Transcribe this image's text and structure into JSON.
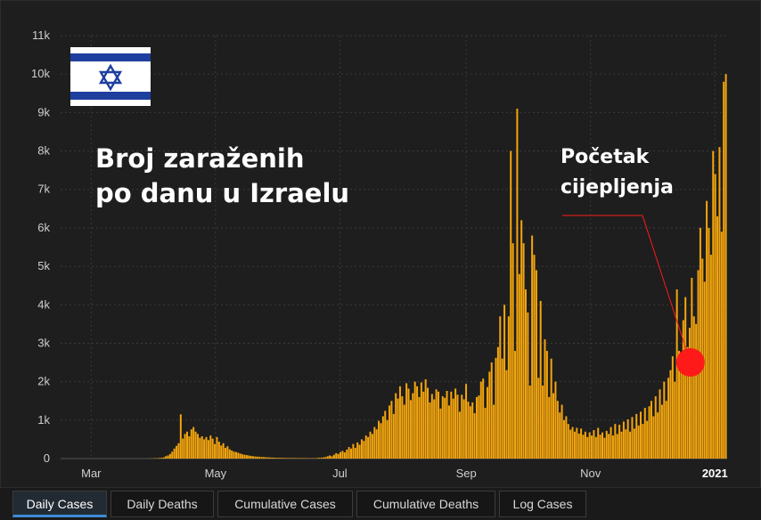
{
  "chart_data": {
    "type": "bar",
    "title": "",
    "xlabel": "",
    "ylabel": "",
    "ylim": [
      0,
      11000
    ],
    "yticks": [
      0,
      1000,
      2000,
      3000,
      4000,
      5000,
      6000,
      7000,
      8000,
      9000,
      10000,
      11000
    ],
    "ytick_labels": [
      "0",
      "1k",
      "2k",
      "3k",
      "4k",
      "5k",
      "6k",
      "7k",
      "8k",
      "9k",
      "10k",
      "11k"
    ],
    "xticks": [
      {
        "label": "Mar",
        "date": "2020-03-01",
        "bold": false
      },
      {
        "label": "May",
        "date": "2020-05-01",
        "bold": false
      },
      {
        "label": "Jul",
        "date": "2020-07-01",
        "bold": false
      },
      {
        "label": "Sep",
        "date": "2020-09-01",
        "bold": false
      },
      {
        "label": "Nov",
        "date": "2020-11-01",
        "bold": false
      },
      {
        "label": "2021",
        "date": "2021-01-01",
        "bold": true
      }
    ],
    "x_start": "2020-02-15",
    "x_end": "2021-01-07",
    "grid": true,
    "bar_color": "#f5a60d",
    "series": [
      {
        "values": [
          0,
          0,
          0,
          0,
          0,
          0,
          0,
          0,
          0,
          0,
          0,
          0,
          0,
          0,
          0,
          0,
          0,
          0,
          0,
          0,
          0,
          0,
          0,
          0,
          0,
          0,
          0,
          0,
          0,
          0,
          0,
          0,
          0,
          0,
          0,
          0,
          0,
          0,
          0,
          0,
          0,
          0,
          3,
          5,
          8,
          10,
          15,
          20,
          30,
          60,
          80,
          120,
          180,
          260,
          330,
          400,
          1150,
          520,
          640,
          700,
          580,
          760,
          820,
          700,
          640,
          540,
          580,
          500,
          560,
          480,
          600,
          520,
          380,
          560,
          440,
          340,
          400,
          280,
          320,
          240,
          210,
          180,
          170,
          150,
          130,
          110,
          100,
          90,
          80,
          70,
          60,
          55,
          50,
          45,
          40,
          38,
          35,
          30,
          28,
          25,
          22,
          20,
          20,
          18,
          18,
          16,
          15,
          15,
          14,
          14,
          13,
          13,
          12,
          12,
          12,
          11,
          11,
          10,
          10,
          10,
          15,
          20,
          25,
          30,
          40,
          60,
          80,
          60,
          100,
          140,
          120,
          170,
          200,
          160,
          230,
          300,
          260,
          380,
          280,
          420,
          360,
          500,
          460,
          600,
          560,
          700,
          640,
          820,
          760,
          980,
          920,
          1100,
          1240,
          1000,
          1380,
          1500,
          1160,
          1700,
          1560,
          1880,
          1620,
          1400,
          1960,
          1820,
          1520,
          1700,
          2000,
          1880,
          1600,
          1980,
          1740,
          2060,
          1840,
          1460,
          1680,
          1540,
          1800,
          1740,
          1300,
          1620,
          1580,
          1760,
          1380,
          1740,
          1560,
          1820,
          1660,
          1220,
          1660,
          1540,
          1940,
          1480,
          1360,
          1460,
          1180,
          1600,
          1640,
          2000,
          2080,
          1320,
          1860,
          2260,
          2500,
          1400,
          2620,
          2900,
          3700,
          2600,
          4000,
          2300,
          3700,
          8000,
          5600,
          2800,
          9100,
          4800,
          6200,
          5600,
          4400,
          3800,
          1900,
          5800,
          5300,
          4900,
          2100,
          4100,
          1900,
          3100,
          2800,
          1600,
          2600,
          1700,
          2000,
          1500,
          1200,
          1400,
          1000,
          1100,
          900,
          750,
          820,
          700,
          800,
          650,
          780,
          620,
          700,
          560,
          680,
          600,
          740,
          560,
          800,
          620,
          680,
          540,
          720,
          640,
          820,
          600,
          900,
          640,
          880,
          700,
          960,
          760,
          1020,
          700,
          1080,
          780,
          1160,
          860,
          1220,
          900,
          1320,
          980,
          1360,
          1500,
          1100,
          1620,
          1200,
          1800,
          1400,
          2000,
          1500,
          2100,
          2300,
          2660,
          2000,
          4400,
          2800,
          2600,
          3600,
          4200,
          2900,
          3400,
          4700,
          3700,
          3500,
          4900,
          6000,
          5200,
          4600,
          6700,
          6000,
          5300,
          8000,
          7400,
          6300,
          8100,
          5900,
          9800,
          10000
        ]
      }
    ]
  },
  "overlay": {
    "title_line_1": "Broj zaraženih",
    "title_line_2": "po danu u Izraelu",
    "annotation_line_1": "Početak",
    "annotation_line_2": "cijepljenja",
    "annotation_date": "2020-12-20",
    "annotation_value": 2500,
    "annotation_color": "#ff1a1a",
    "flag_icon": "israel-flag-icon"
  },
  "tabs": [
    {
      "label": "Daily Cases",
      "active": true
    },
    {
      "label": "Daily Deaths",
      "active": false
    },
    {
      "label": "Cumulative Cases",
      "active": false
    },
    {
      "label": "Cumulative Deaths",
      "active": false
    },
    {
      "label": "Log Cases",
      "active": false
    }
  ]
}
